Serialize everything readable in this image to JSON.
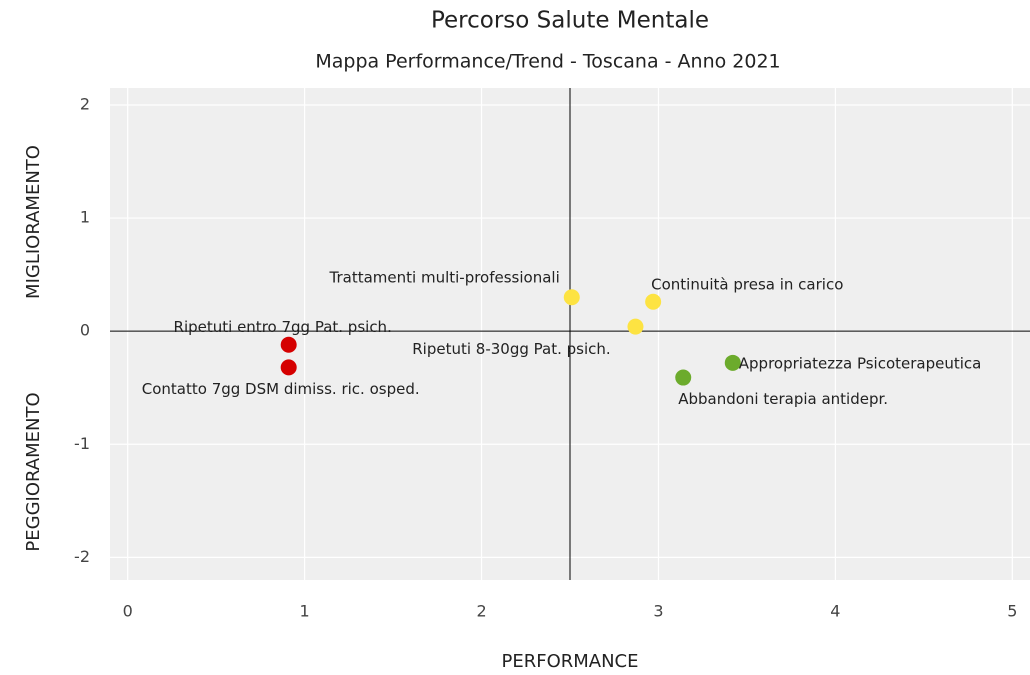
{
  "chart_data": {
    "type": "scatter",
    "title": "Percorso Salute Mentale",
    "subtitle": "Mappa Performance/Trend - Toscana - Anno 2021",
    "x_label": "PERFORMANCE",
    "y_label_top": "MIGLIORAMENTO",
    "y_label_bottom": "PEGGIORAMENTO",
    "labels": [
      "Ripetuti entro 7gg Pat. psich.",
      "Contatto 7gg DSM dimiss. ric. osped.",
      "Trattamenti multi-professionali",
      "Continuità presa in carico",
      "Ripetuti 8-30gg Pat. psich.",
      "Appropriatezza Psicoterapeutica",
      "Abbandoni terapia antidepr."
    ],
    "x": [
      0.91,
      0.91,
      2.51,
      2.97,
      2.87,
      3.42,
      3.14
    ],
    "values": [
      -0.12,
      -0.32,
      0.3,
      0.26,
      0.04,
      -0.28,
      -0.41
    ],
    "colors": [
      "#d50000",
      "#d50000",
      "#fde342",
      "#fde342",
      "#fde342",
      "#6cab2c",
      "#6cab2c"
    ],
    "vline": 2.5,
    "hline": 0,
    "xlim": [
      -0.1,
      5.1
    ],
    "ylim": [
      -2.2,
      2.15
    ],
    "xticks": [
      0,
      1,
      2,
      3,
      4,
      5
    ],
    "yticks": [
      -2,
      -1,
      0,
      1,
      2
    ],
    "grid": true
  }
}
